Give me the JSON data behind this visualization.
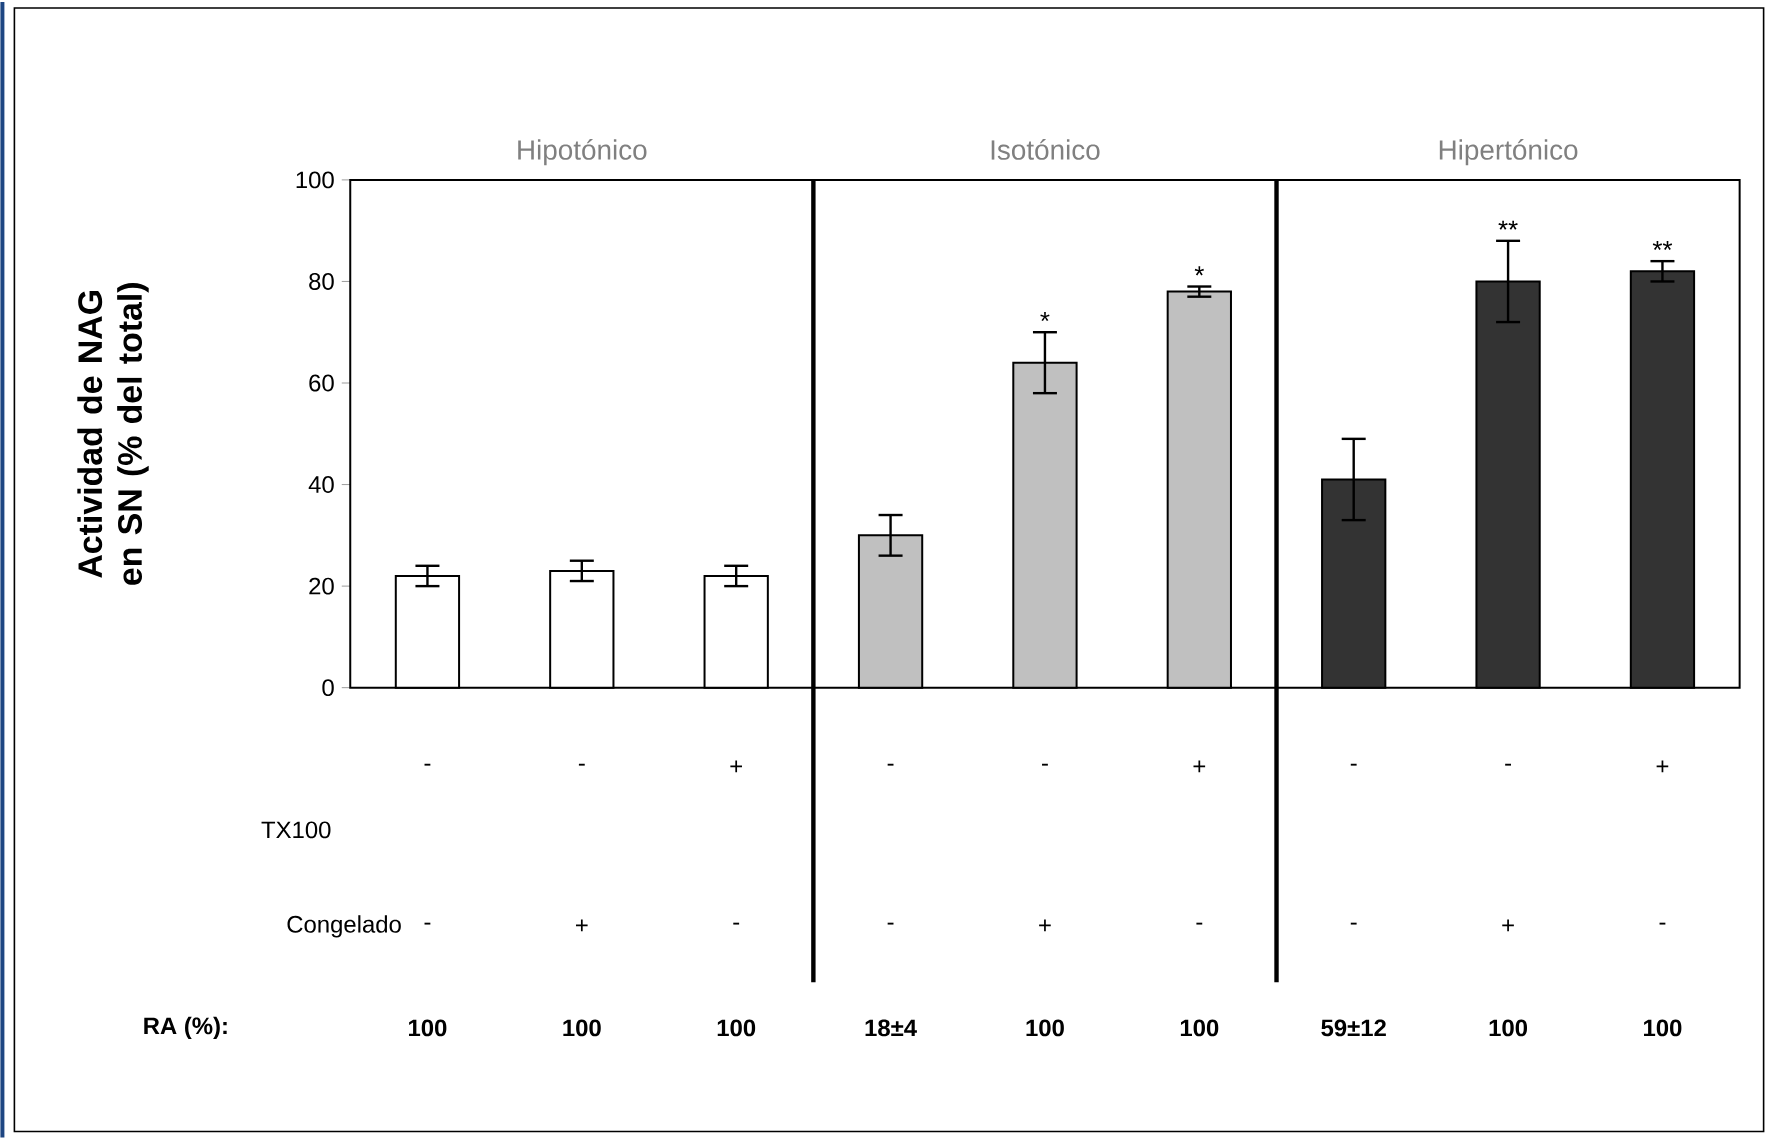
{
  "chart_data": {
    "type": "bar",
    "ylabel": "Actividad de NAG en SN (% del total)",
    "categories": [
      null,
      null,
      null,
      null,
      null,
      null,
      null,
      null,
      null
    ],
    "values": [
      22,
      23,
      22,
      30,
      64,
      78,
      41,
      80,
      82
    ],
    "errors": [
      2,
      2,
      2,
      4,
      6,
      1,
      8,
      8,
      2
    ],
    "value_labels": [
      null,
      null,
      null,
      null,
      "*",
      "*",
      null,
      "**",
      "**"
    ],
    "colors": [
      "#ffffff",
      "#ffffff",
      "#ffffff",
      "#c0c0c0",
      "#c0c0c0",
      "#c0c0c0",
      "#333333",
      "#333333",
      "#333333"
    ],
    "ylim": [
      0,
      100
    ],
    "yticks": [
      0,
      20,
      40,
      60,
      80,
      100
    ],
    "grid": false,
    "annotations": [
      "Hipotónico",
      "Isotónico",
      "Hipertónico",
      "TX100",
      "-",
      "-",
      "+",
      "-",
      "-",
      "+",
      "-",
      "-",
      "+",
      "Congelado",
      "-",
      "+",
      "-",
      "-",
      "+",
      "-",
      "-",
      "+",
      "-",
      "RA (%):",
      "100",
      "100",
      "100",
      "18±4",
      "100",
      "100",
      "59±12",
      "100",
      "100"
    ]
  }
}
